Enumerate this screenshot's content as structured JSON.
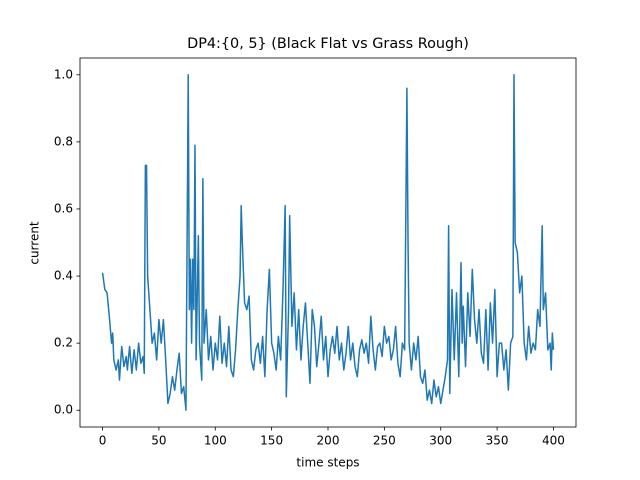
{
  "chart_data": {
    "type": "line",
    "title": "DP4:{0, 5} (Black Flat vs Grass Rough)",
    "x_label": "time steps",
    "y_label": "current",
    "xlim": [
      -20,
      420
    ],
    "ylim": [
      -0.05,
      1.05
    ],
    "xticks": [
      0,
      50,
      100,
      150,
      200,
      250,
      300,
      350,
      400
    ],
    "yticks": [
      {
        "value": 0,
        "label": "0.0"
      },
      0.2,
      0.4,
      0.6,
      0.8,
      {
        "value": 1,
        "label": "1.0"
      }
    ],
    "series": [
      {
        "color": "#1f77b4",
        "x": [
          0,
          2,
          4,
          6,
          8,
          9,
          10,
          12,
          14,
          15,
          17,
          19,
          21,
          22,
          24,
          26,
          28,
          30,
          32,
          34,
          36,
          37,
          38,
          39,
          40,
          42,
          44,
          46,
          48,
          50,
          52,
          54,
          56,
          58,
          60,
          62,
          64,
          66,
          68,
          70,
          72,
          74,
          76,
          77,
          78,
          79,
          80,
          81,
          82,
          83,
          85,
          86,
          88,
          89,
          90,
          92,
          94,
          96,
          98,
          100,
          102,
          104,
          106,
          108,
          110,
          112,
          114,
          116,
          118,
          120,
          122,
          123,
          124,
          126,
          128,
          130,
          132,
          134,
          136,
          138,
          140,
          142,
          144,
          146,
          148,
          150,
          152,
          154,
          156,
          158,
          160,
          162,
          163,
          165,
          166,
          168,
          170,
          172,
          174,
          176,
          178,
          180,
          182,
          184,
          186,
          188,
          190,
          192,
          194,
          196,
          198,
          200,
          202,
          204,
          206,
          208,
          210,
          212,
          214,
          216,
          218,
          220,
          222,
          224,
          226,
          228,
          230,
          232,
          234,
          236,
          238,
          240,
          242,
          244,
          246,
          248,
          250,
          252,
          254,
          256,
          258,
          260,
          262,
          264,
          266,
          268,
          270,
          271,
          272,
          274,
          276,
          278,
          280,
          282,
          284,
          286,
          288,
          290,
          292,
          294,
          296,
          298,
          300,
          302,
          304,
          306,
          307,
          308,
          310,
          312,
          314,
          316,
          318,
          319,
          320,
          322,
          324,
          326,
          328,
          330,
          332,
          334,
          336,
          338,
          340,
          342,
          344,
          346,
          348,
          350,
          352,
          354,
          356,
          358,
          360,
          362,
          364,
          365,
          366,
          368,
          370,
          372,
          374,
          376,
          378,
          380,
          382,
          384,
          386,
          388,
          390,
          391,
          393,
          395,
          397,
          398,
          399,
          400
        ],
        "values": [
          0.41,
          0.36,
          0.35,
          0.28,
          0.2,
          0.23,
          0.15,
          0.12,
          0.15,
          0.09,
          0.19,
          0.13,
          0.16,
          0.12,
          0.19,
          0.11,
          0.18,
          0.12,
          0.2,
          0.14,
          0.16,
          0.11,
          0.73,
          0.73,
          0.4,
          0.3,
          0.2,
          0.23,
          0.15,
          0.27,
          0.2,
          0.27,
          0.15,
          0.02,
          0.05,
          0.1,
          0.06,
          0.12,
          0.17,
          0.05,
          0.07,
          0.0,
          1.0,
          0.3,
          0.45,
          0.2,
          0.45,
          0.3,
          0.79,
          0.15,
          0.52,
          0.2,
          0.09,
          0.69,
          0.2,
          0.3,
          0.15,
          0.22,
          0.12,
          0.2,
          0.15,
          0.28,
          0.14,
          0.2,
          0.13,
          0.25,
          0.12,
          0.1,
          0.18,
          0.3,
          0.4,
          0.61,
          0.5,
          0.32,
          0.3,
          0.34,
          0.15,
          0.12,
          0.18,
          0.2,
          0.14,
          0.22,
          0.1,
          0.3,
          0.42,
          0.2,
          0.17,
          0.12,
          0.22,
          0.15,
          0.35,
          0.61,
          0.04,
          0.3,
          0.58,
          0.25,
          0.35,
          0.18,
          0.3,
          0.15,
          0.25,
          0.32,
          0.2,
          0.08,
          0.3,
          0.25,
          0.13,
          0.2,
          0.28,
          0.15,
          0.22,
          0.1,
          0.18,
          0.22,
          0.17,
          0.25,
          0.15,
          0.2,
          0.12,
          0.17,
          0.25,
          0.15,
          0.2,
          0.13,
          0.1,
          0.18,
          0.21,
          0.17,
          0.2,
          0.14,
          0.28,
          0.18,
          0.12,
          0.19,
          0.2,
          0.16,
          0.25,
          0.2,
          0.22,
          0.15,
          0.18,
          0.25,
          0.14,
          0.1,
          0.2,
          0.18,
          0.96,
          0.5,
          0.2,
          0.12,
          0.2,
          0.15,
          0.22,
          0.1,
          0.08,
          0.12,
          0.03,
          0.06,
          0.02,
          0.09,
          0.04,
          0.07,
          0.02,
          0.06,
          0.1,
          0.15,
          0.55,
          0.05,
          0.36,
          0.15,
          0.35,
          0.1,
          0.44,
          0.2,
          0.31,
          0.13,
          0.35,
          0.22,
          0.42,
          0.27,
          0.2,
          0.3,
          0.17,
          0.14,
          0.3,
          0.12,
          0.32,
          0.2,
          0.36,
          0.1,
          0.2,
          0.2,
          0.12,
          0.18,
          0.06,
          0.2,
          0.22,
          1.0,
          0.5,
          0.47,
          0.35,
          0.4,
          0.2,
          0.15,
          0.25,
          0.17,
          0.2,
          0.18,
          0.3,
          0.25,
          0.55,
          0.3,
          0.35,
          0.18,
          0.2,
          0.12,
          0.23,
          0.18
        ]
      }
    ]
  }
}
